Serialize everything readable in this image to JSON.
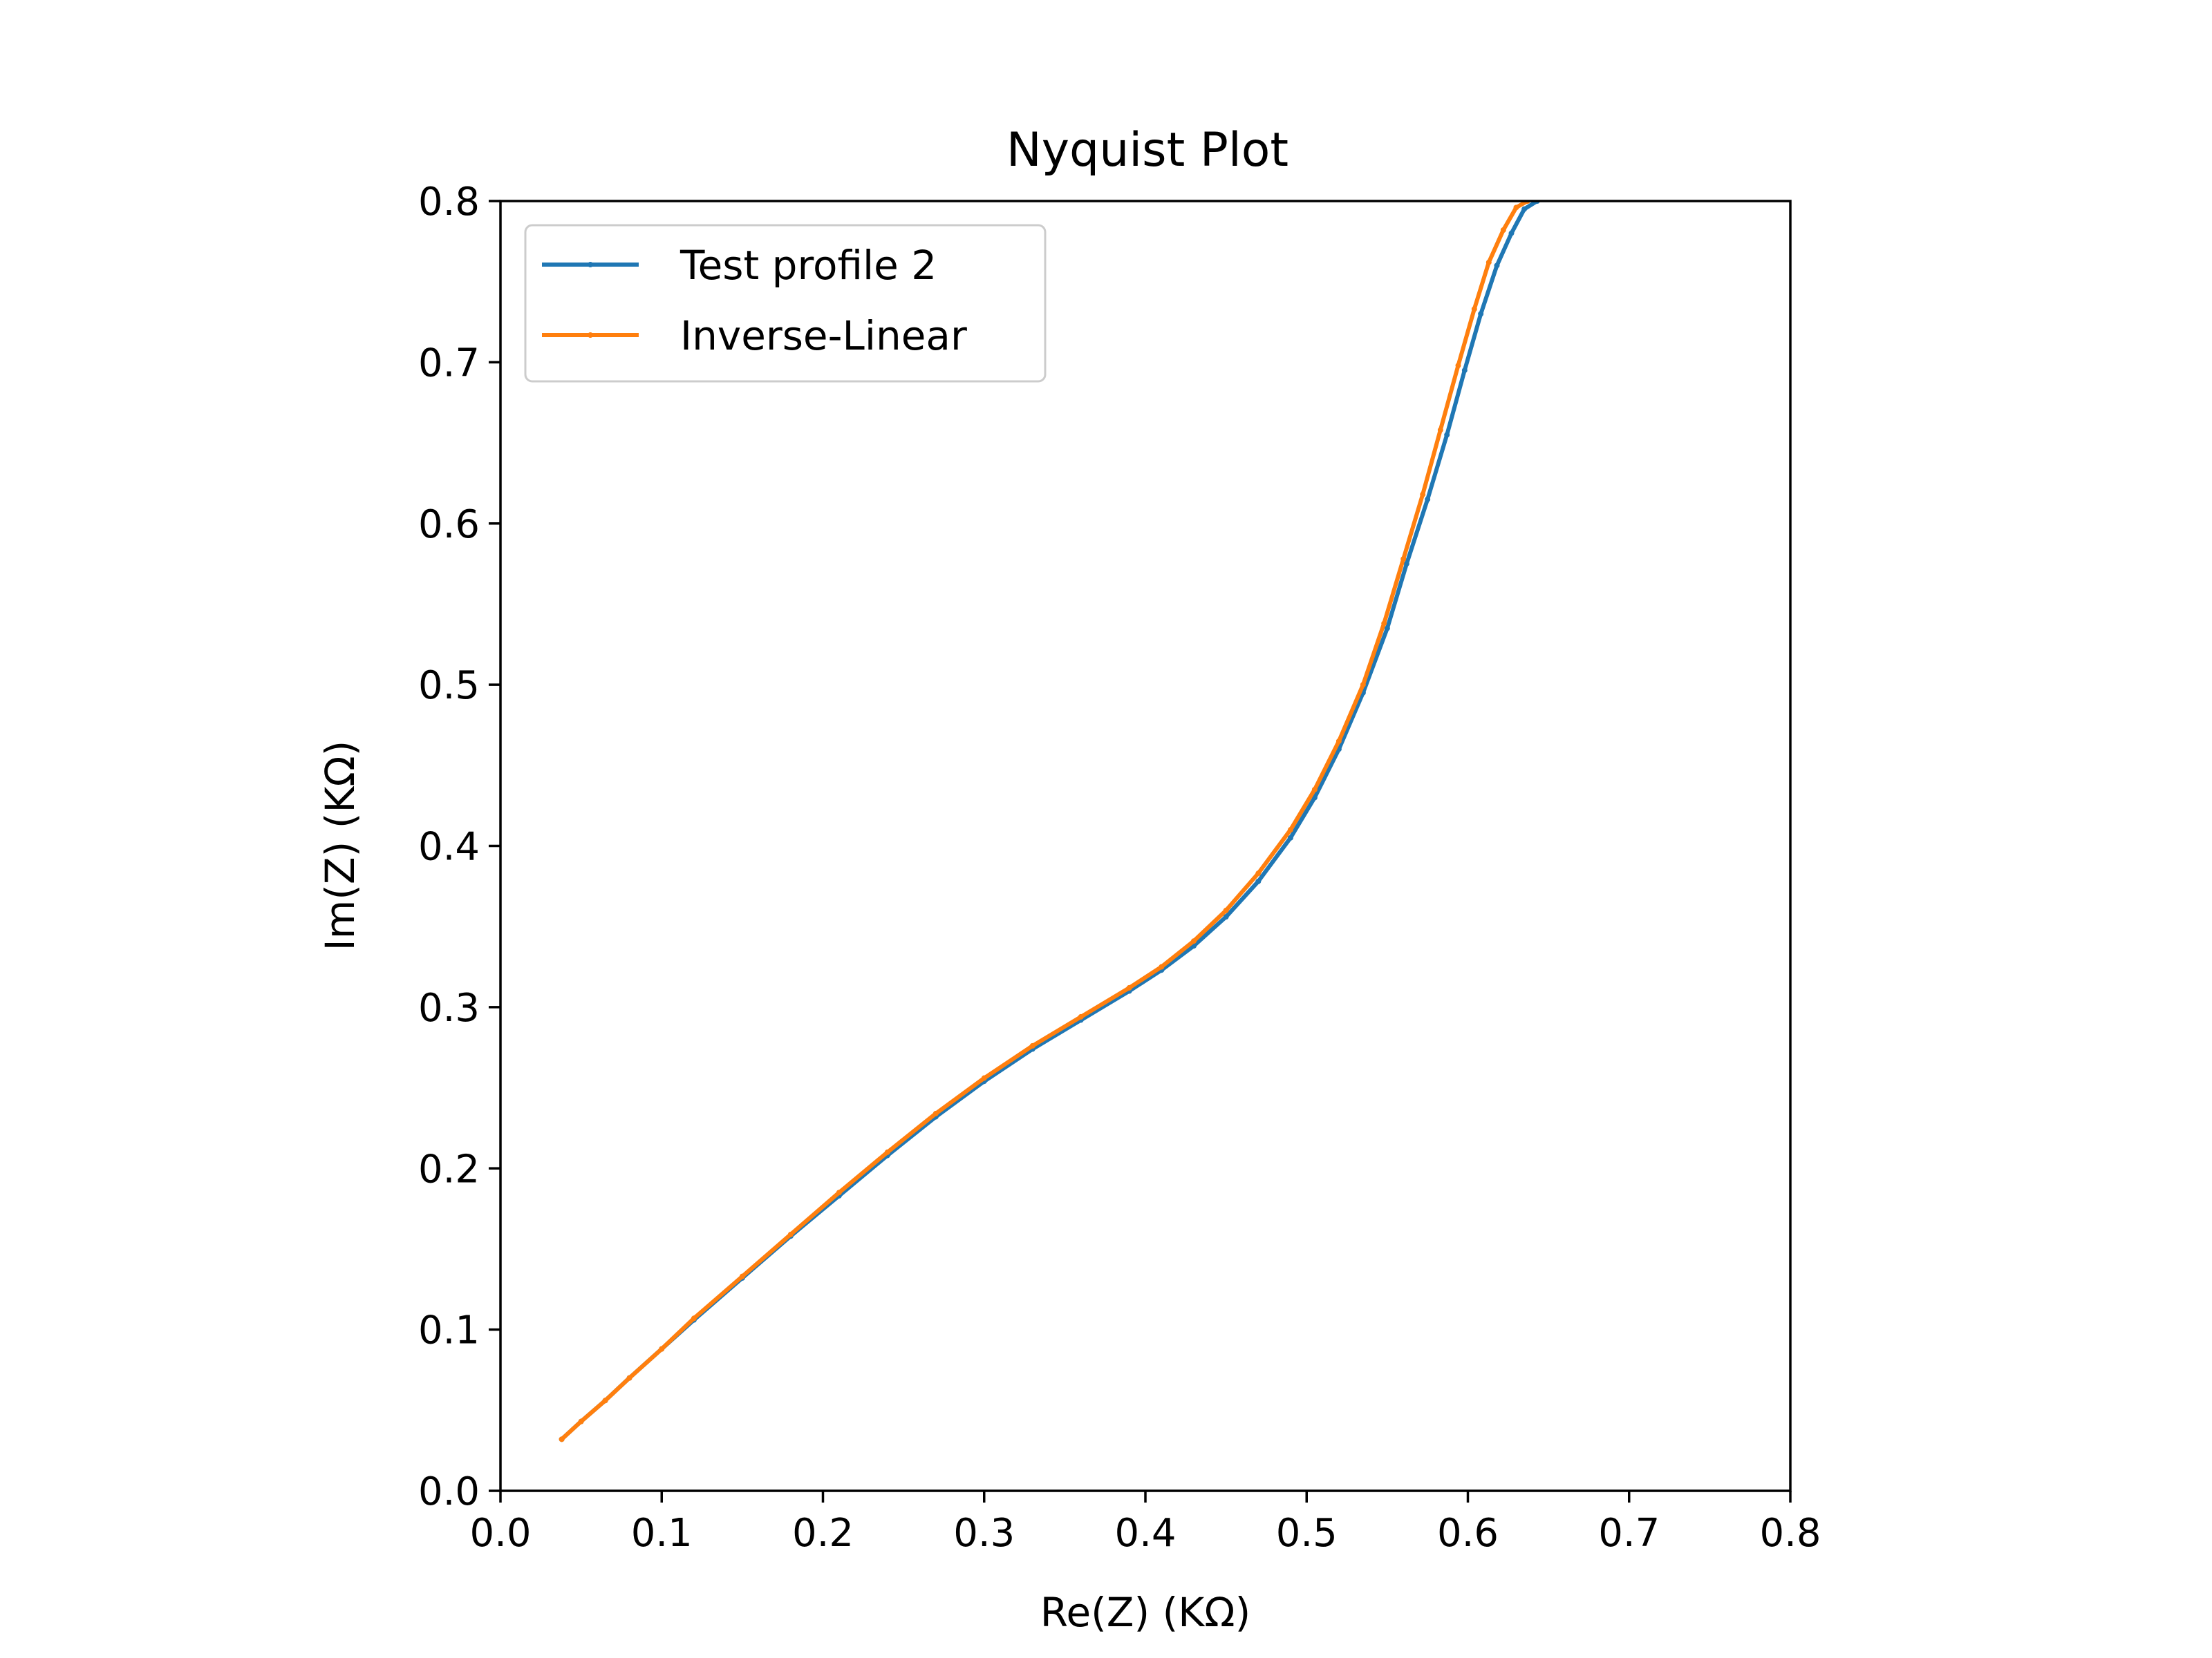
{
  "chart_data": {
    "type": "line",
    "title": "Nyquist Plot",
    "xlabel": "Re(Z) (KΩ)",
    "ylabel": "Im(Z) (KΩ)",
    "xlim": [
      0.0,
      0.8
    ],
    "ylim": [
      0.0,
      0.8
    ],
    "xticks": [
      "0.0",
      "0.1",
      "0.2",
      "0.3",
      "0.4",
      "0.5",
      "0.6",
      "0.7",
      "0.8"
    ],
    "yticks": [
      "0.0",
      "0.1",
      "0.2",
      "0.3",
      "0.4",
      "0.5",
      "0.6",
      "0.7",
      "0.8"
    ],
    "grid": false,
    "legend_position": "top-left",
    "series": [
      {
        "name": "Test profile 2",
        "color": "#1f77b4",
        "x": [
          0.038,
          0.05,
          0.065,
          0.08,
          0.1,
          0.12,
          0.15,
          0.18,
          0.21,
          0.24,
          0.27,
          0.3,
          0.33,
          0.36,
          0.39,
          0.41,
          0.43,
          0.45,
          0.47,
          0.49,
          0.505,
          0.52,
          0.535,
          0.55,
          0.562,
          0.575,
          0.587,
          0.598,
          0.608,
          0.618,
          0.627,
          0.635,
          0.643
        ],
        "y": [
          0.032,
          0.043,
          0.056,
          0.07,
          0.088,
          0.106,
          0.132,
          0.158,
          0.183,
          0.208,
          0.232,
          0.254,
          0.274,
          0.292,
          0.31,
          0.323,
          0.338,
          0.356,
          0.378,
          0.405,
          0.43,
          0.46,
          0.495,
          0.535,
          0.575,
          0.615,
          0.655,
          0.695,
          0.73,
          0.76,
          0.78,
          0.795,
          0.8
        ]
      },
      {
        "name": "Inverse-Linear",
        "color": "#ff7f0e",
        "x": [
          0.038,
          0.05,
          0.065,
          0.08,
          0.1,
          0.12,
          0.15,
          0.18,
          0.21,
          0.24,
          0.27,
          0.3,
          0.33,
          0.36,
          0.39,
          0.41,
          0.43,
          0.45,
          0.47,
          0.49,
          0.505,
          0.52,
          0.535,
          0.548,
          0.56,
          0.572,
          0.583,
          0.594,
          0.604,
          0.613,
          0.622,
          0.63,
          0.637
        ],
        "y": [
          0.032,
          0.043,
          0.056,
          0.07,
          0.088,
          0.107,
          0.133,
          0.159,
          0.185,
          0.21,
          0.234,
          0.256,
          0.276,
          0.294,
          0.312,
          0.325,
          0.341,
          0.36,
          0.383,
          0.41,
          0.435,
          0.465,
          0.5,
          0.538,
          0.578,
          0.618,
          0.658,
          0.698,
          0.733,
          0.762,
          0.782,
          0.796,
          0.8
        ]
      }
    ]
  }
}
